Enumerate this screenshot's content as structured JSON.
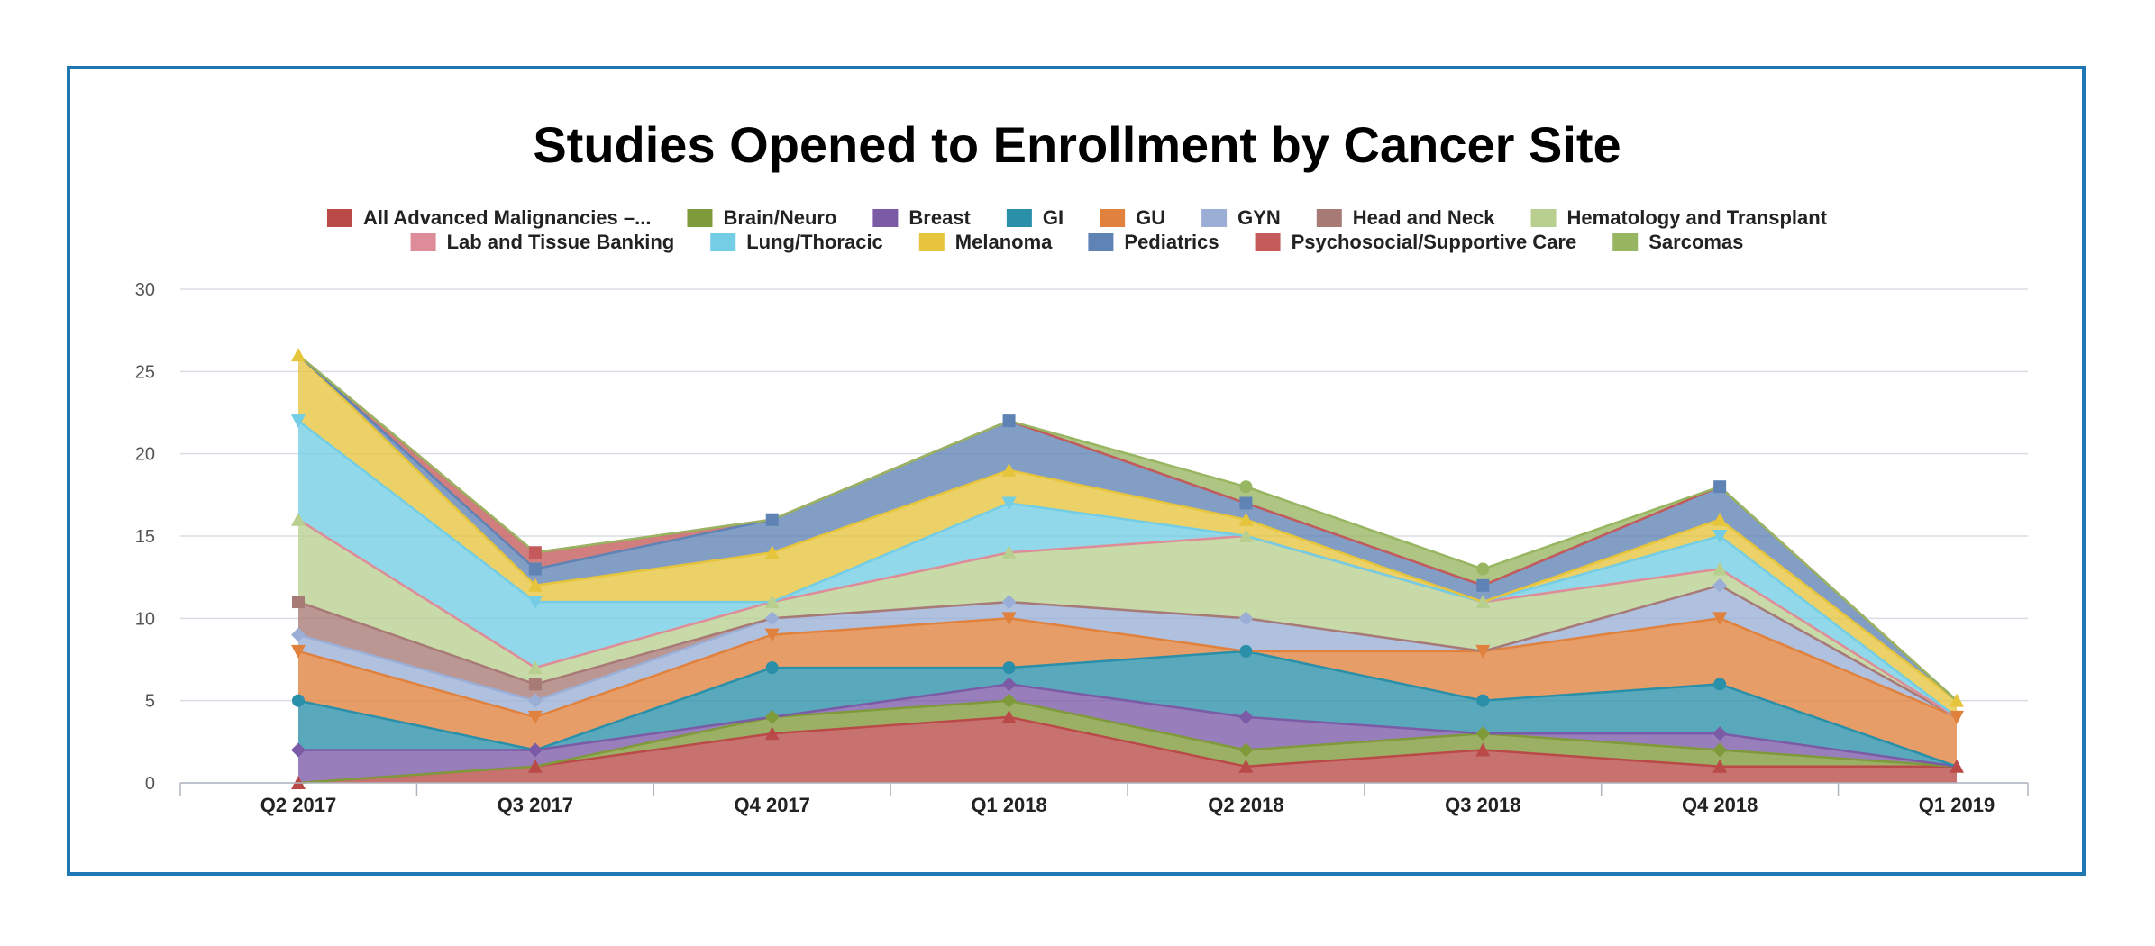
{
  "chart_data": {
    "type": "area",
    "stacked": true,
    "title": "Studies Opened to Enrollment by Cancer Site",
    "xlabel": "",
    "ylabel": "",
    "categories": [
      "Q2 2017",
      "Q3 2017",
      "Q4 2017",
      "Q1 2018",
      "Q2 2018",
      "Q3 2018",
      "Q4 2018",
      "Q1 2019"
    ],
    "ylim": [
      0,
      30
    ],
    "yticks": [
      0,
      5,
      10,
      15,
      20,
      25,
      30
    ],
    "grid": true,
    "legend_position": "top",
    "series": [
      {
        "name": "All Advanced Malignancies –...",
        "color": "#b94a48",
        "values": [
          0,
          1,
          3,
          4,
          1,
          2,
          1,
          1
        ]
      },
      {
        "name": "Brain/Neuro",
        "color": "#7f9a3a",
        "values": [
          0,
          0,
          1,
          1,
          1,
          1,
          1,
          0
        ]
      },
      {
        "name": "Breast",
        "color": "#7b5aa6",
        "values": [
          2,
          1,
          0,
          1,
          2,
          0,
          1,
          0
        ]
      },
      {
        "name": "GI",
        "color": "#2a8fa8",
        "values": [
          3,
          0,
          3,
          1,
          4,
          2,
          3,
          0
        ]
      },
      {
        "name": "GU",
        "color": "#e0823d",
        "values": [
          3,
          2,
          2,
          3,
          0,
          3,
          4,
          3
        ]
      },
      {
        "name": "GYN",
        "color": "#9aaed6",
        "values": [
          1,
          1,
          1,
          1,
          2,
          0,
          2,
          0
        ]
      },
      {
        "name": "Head and Neck",
        "color": "#a87a76",
        "values": [
          2,
          1,
          0,
          0,
          0,
          0,
          0,
          0
        ]
      },
      {
        "name": "Hematology and Transplant",
        "color": "#b8cf8f",
        "values": [
          5,
          1,
          1,
          3,
          5,
          3,
          1,
          0
        ]
      },
      {
        "name": "Lab and Tissue Banking",
        "color": "#de8c9a",
        "values": [
          0,
          0,
          0,
          0,
          0,
          0,
          0,
          0
        ]
      },
      {
        "name": "Lung/Thoracic",
        "color": "#72cde5",
        "values": [
          6,
          4,
          0,
          3,
          0,
          0,
          2,
          0
        ]
      },
      {
        "name": "Melanoma",
        "color": "#e6c43c",
        "values": [
          4,
          1,
          3,
          2,
          1,
          0,
          1,
          1
        ]
      },
      {
        "name": "Pediatrics",
        "color": "#5f83b5",
        "values": [
          0,
          1,
          2,
          3,
          1,
          1,
          2,
          0
        ]
      },
      {
        "name": "Psychosocial/Supportive Care",
        "color": "#c45a5a",
        "values": [
          0,
          1,
          0,
          0,
          0,
          0,
          0,
          0
        ]
      },
      {
        "name": "Sarcomas",
        "color": "#98b561",
        "values": [
          0,
          0,
          0,
          0,
          1,
          1,
          0,
          0
        ]
      }
    ]
  }
}
